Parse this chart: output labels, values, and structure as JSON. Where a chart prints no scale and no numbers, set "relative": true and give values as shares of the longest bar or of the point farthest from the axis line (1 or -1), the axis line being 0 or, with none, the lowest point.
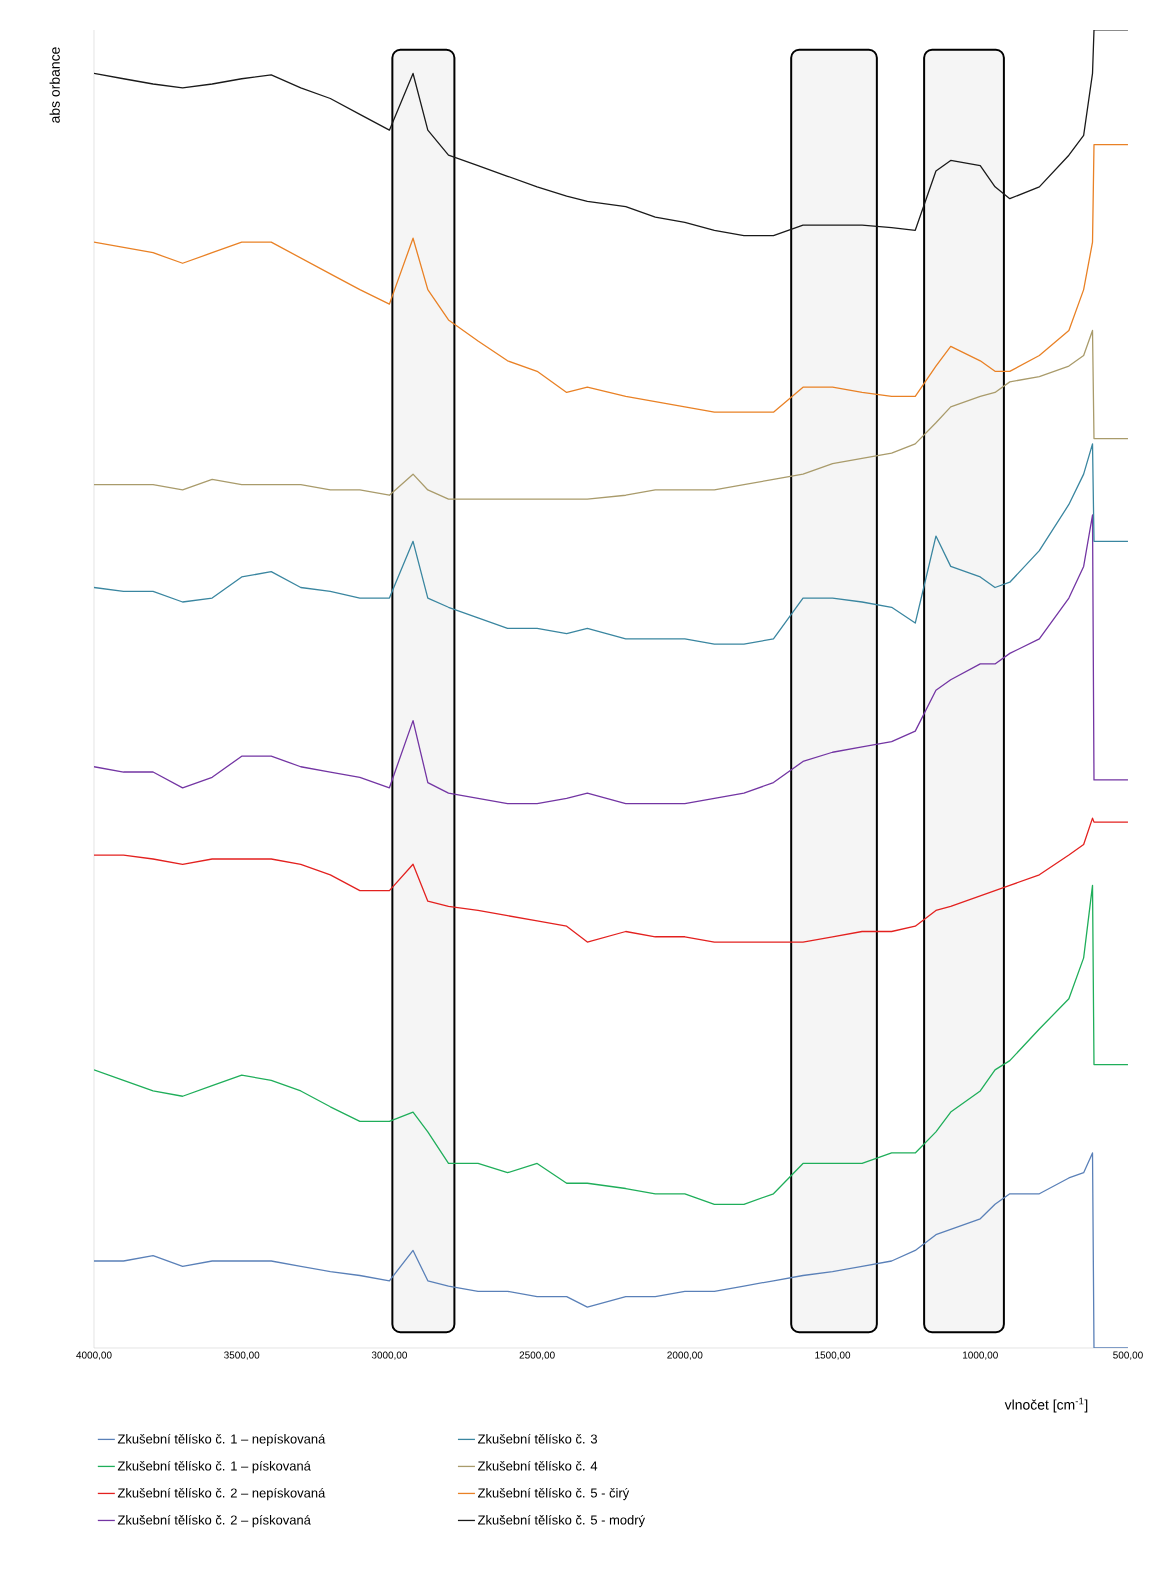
{
  "chart_data": {
    "type": "line",
    "relative": true,
    "ylabel": "abs orbance",
    "xlabel": "vlnočet [cm$^{-1}$]",
    "legend": "bottom",
    "xlim": [
      4000,
      500
    ],
    "xticks": [
      {
        "value": 4000,
        "label": "4000,00"
      },
      {
        "value": 3500,
        "label": "3500,00"
      },
      {
        "value": 3000,
        "label": "3000,00"
      },
      {
        "value": 2500,
        "label": "2500,00"
      },
      {
        "value": 2000,
        "label": "2000,00"
      },
      {
        "value": 1500,
        "label": "1500,00"
      },
      {
        "value": 1000,
        "label": "1000,00"
      },
      {
        "value": 500,
        "label": "500,00"
      }
    ],
    "x": [
      4000,
      3900,
      3800,
      3700,
      3600,
      3500,
      3400,
      3300,
      3200,
      3100,
      3000,
      2920,
      2870,
      2800,
      2700,
      2600,
      2500,
      2400,
      2330,
      2200,
      2100,
      2000,
      1900,
      1800,
      1700,
      1600,
      1500,
      1400,
      1300,
      1220,
      1150,
      1100,
      1000,
      950,
      900,
      800,
      700,
      650,
      620,
      615,
      500
    ],
    "bands": [
      {
        "axis": "x",
        "from": 2990,
        "to": 2780
      },
      {
        "axis": "x",
        "from": 1640,
        "to": 1350
      },
      {
        "axis": "x",
        "from": 1190,
        "to": 920
      }
    ],
    "series": [
      {
        "name": "Zkušební tělísko č. 1 – nepískovaná",
        "color": "#5a80b8",
        "values": [
          0.066,
          0.066,
          0.07,
          0.062,
          0.066,
          0.066,
          0.066,
          0.062,
          0.058,
          0.055,
          0.051,
          0.074,
          0.051,
          0.047,
          0.043,
          0.043,
          0.039,
          0.039,
          0.031,
          0.039,
          0.039,
          0.043,
          0.043,
          0.047,
          0.051,
          0.055,
          0.058,
          0.062,
          0.066,
          0.074,
          0.086,
          0.09,
          0.098,
          0.109,
          0.117,
          0.117,
          0.129,
          0.133,
          0.148,
          0.0,
          0.0
        ]
      },
      {
        "name": "Zkušební tělísko č. 1 – pískovaná",
        "color": "#1fae5a",
        "values": [
          0.211,
          0.203,
          0.195,
          0.191,
          0.199,
          0.207,
          0.203,
          0.195,
          0.183,
          0.172,
          0.172,
          0.179,
          0.164,
          0.14,
          0.14,
          0.133,
          0.14,
          0.125,
          0.125,
          0.121,
          0.117,
          0.117,
          0.109,
          0.109,
          0.117,
          0.14,
          0.14,
          0.14,
          0.148,
          0.148,
          0.164,
          0.179,
          0.195,
          0.211,
          0.218,
          0.242,
          0.265,
          0.296,
          0.351,
          0.215,
          0.215
        ]
      },
      {
        "name": "Zkušební tělísko č. 2 – nepískovaná",
        "color": "#e3211f",
        "values": [
          0.374,
          0.374,
          0.371,
          0.367,
          0.371,
          0.371,
          0.371,
          0.367,
          0.359,
          0.347,
          0.347,
          0.367,
          0.339,
          0.335,
          0.332,
          0.328,
          0.324,
          0.32,
          0.308,
          0.316,
          0.312,
          0.312,
          0.308,
          0.308,
          0.308,
          0.308,
          0.312,
          0.316,
          0.316,
          0.32,
          0.332,
          0.335,
          0.343,
          0.347,
          0.351,
          0.359,
          0.374,
          0.382,
          0.402,
          0.399,
          0.399
        ]
      },
      {
        "name": "Zkušební tělísko č. 2 – pískovaná",
        "color": "#7335a3",
        "values": [
          0.441,
          0.437,
          0.437,
          0.425,
          0.433,
          0.449,
          0.449,
          0.441,
          0.437,
          0.433,
          0.425,
          0.476,
          0.429,
          0.421,
          0.417,
          0.413,
          0.413,
          0.417,
          0.421,
          0.413,
          0.413,
          0.413,
          0.417,
          0.421,
          0.429,
          0.445,
          0.452,
          0.456,
          0.46,
          0.468,
          0.499,
          0.507,
          0.519,
          0.519,
          0.527,
          0.538,
          0.569,
          0.593,
          0.632,
          0.431,
          0.431
        ]
      },
      {
        "name": "Zkušební tělísko č. 3",
        "color": "#3a86a0",
        "values": [
          0.577,
          0.574,
          0.574,
          0.566,
          0.569,
          0.585,
          0.589,
          0.577,
          0.574,
          0.569,
          0.569,
          0.612,
          0.569,
          0.562,
          0.554,
          0.546,
          0.546,
          0.542,
          0.546,
          0.538,
          0.538,
          0.538,
          0.534,
          0.534,
          0.538,
          0.569,
          0.569,
          0.566,
          0.562,
          0.55,
          0.616,
          0.593,
          0.585,
          0.577,
          0.581,
          0.605,
          0.64,
          0.663,
          0.686,
          0.612,
          0.612
        ]
      },
      {
        "name": "Zkušební tělísko č. 4",
        "color": "#a99b6b",
        "values": [
          0.655,
          0.655,
          0.655,
          0.651,
          0.659,
          0.655,
          0.655,
          0.655,
          0.651,
          0.651,
          0.647,
          0.663,
          0.651,
          0.644,
          0.644,
          0.644,
          0.644,
          0.644,
          0.644,
          0.647,
          0.651,
          0.651,
          0.651,
          0.655,
          0.659,
          0.663,
          0.671,
          0.675,
          0.679,
          0.686,
          0.702,
          0.714,
          0.722,
          0.725,
          0.733,
          0.737,
          0.745,
          0.753,
          0.772,
          0.69,
          0.69
        ]
      },
      {
        "name": "Zkušební tělísko č. 5 - čirý",
        "color": "#e98125",
        "values": [
          0.839,
          0.835,
          0.831,
          0.823,
          0.831,
          0.839,
          0.839,
          0.827,
          0.815,
          0.803,
          0.792,
          0.842,
          0.803,
          0.78,
          0.764,
          0.749,
          0.741,
          0.725,
          0.729,
          0.722,
          0.718,
          0.714,
          0.71,
          0.71,
          0.71,
          0.729,
          0.729,
          0.725,
          0.722,
          0.722,
          0.745,
          0.76,
          0.749,
          0.741,
          0.741,
          0.753,
          0.772,
          0.803,
          0.839,
          0.913,
          0.913
        ]
      },
      {
        "name": "Zkušební tělísko č. 5 - modrý",
        "color": "#1a1a1a",
        "values": [
          0.967,
          0.963,
          0.959,
          0.956,
          0.959,
          0.963,
          0.966,
          0.956,
          0.948,
          0.936,
          0.924,
          0.967,
          0.924,
          0.905,
          0.897,
          0.889,
          0.881,
          0.874,
          0.87,
          0.866,
          0.858,
          0.854,
          0.848,
          0.844,
          0.844,
          0.852,
          0.852,
          0.852,
          0.85,
          0.848,
          0.893,
          0.901,
          0.897,
          0.881,
          0.872,
          0.881,
          0.905,
          0.92,
          0.967,
          1.0,
          1.0
        ]
      }
    ]
  }
}
